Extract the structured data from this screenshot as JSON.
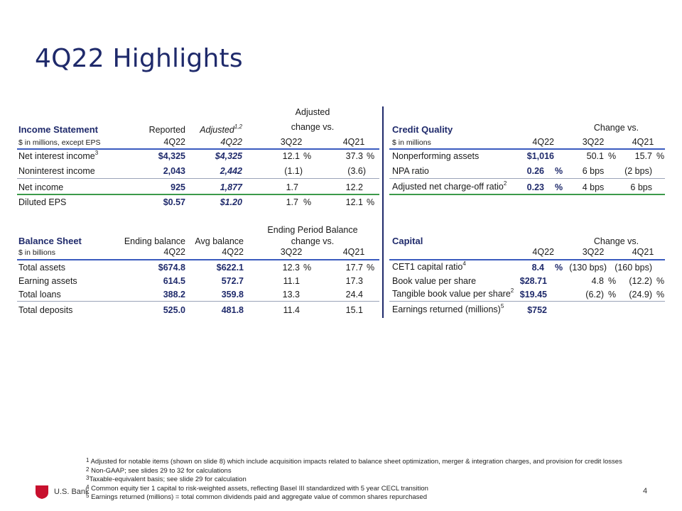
{
  "title": "4Q22 Highlights",
  "income": {
    "header": "Income Statement",
    "sub": "$ in millions, except EPS",
    "col_reported": "Reported",
    "col_reported_q": "4Q22",
    "col_adjusted": "Adjusted",
    "col_adjusted_sup": "1,2",
    "col_adjusted_q": "4Q22",
    "change_line1": "Adjusted",
    "change_line2": "change vs.",
    "col_3q": "3Q22",
    "col_4q": "4Q21",
    "rows": [
      {
        "label": "Net interest income",
        "sup": "3",
        "reported": "$4,325",
        "adjusted": "$4,325",
        "c3q": "12.1",
        "c3q_pct": "%",
        "c4q": "37.3",
        "c4q_pct": "%"
      },
      {
        "label": "Noninterest income",
        "sup": "",
        "reported": "2,043",
        "adjusted": "2,442",
        "c3q": "(1.1)",
        "c3q_pct": "",
        "c4q": "(3.6)",
        "c4q_pct": ""
      },
      {
        "label": "Net income",
        "sup": "",
        "reported": "925",
        "adjusted": "1,877",
        "c3q": "1.7",
        "c3q_pct": "",
        "c4q": "12.2",
        "c4q_pct": ""
      },
      {
        "label": "Diluted EPS",
        "sup": "",
        "reported": "$0.57",
        "adjusted": "$1.20",
        "c3q": "1.7",
        "c3q_pct": "%",
        "c4q": "12.1",
        "c4q_pct": "%"
      }
    ]
  },
  "credit": {
    "header": "Credit Quality",
    "sub": "$ in millions",
    "change": "Change vs.",
    "col_q": "4Q22",
    "col_3q": "3Q22",
    "col_4q": "4Q21",
    "rows": [
      {
        "label": "Nonperforming assets",
        "sup": "",
        "value": "$1,016",
        "vpct": "",
        "c3q": "50.1",
        "c3q_pct": "%",
        "c4q": "15.7",
        "c4q_pct": "%"
      },
      {
        "label": "NPA ratio",
        "sup": "",
        "value": "0.26",
        "vpct": "%",
        "c3q": "6 bps",
        "c3q_pct": "",
        "c4q": "(2 bps)",
        "c4q_pct": ""
      },
      {
        "label": "Adjusted net charge-off ratio",
        "sup": "2",
        "value": "0.23",
        "vpct": "%",
        "c3q": "4 bps",
        "c3q_pct": "",
        "c4q": "6 bps",
        "c4q_pct": ""
      }
    ]
  },
  "balance": {
    "header": "Balance Sheet",
    "sub": "$ in billions",
    "col_end": "Ending balance",
    "col_end_q": "4Q22",
    "col_avg": "Avg balance",
    "col_avg_q": "4Q22",
    "change_line1": "Ending Period Balance",
    "change_line2": "change vs.",
    "col_3q": "3Q22",
    "col_4q": "4Q21",
    "rows": [
      {
        "label": "Total assets",
        "ending": "$674.8",
        "avg": "$622.1",
        "c3q": "12.3",
        "c3q_pct": "%",
        "c4q": "17.7",
        "c4q_pct": "%"
      },
      {
        "label": "Earning assets",
        "ending": "614.5",
        "avg": "572.7",
        "c3q": "11.1",
        "c3q_pct": "",
        "c4q": "17.3",
        "c4q_pct": ""
      },
      {
        "label": "Total loans",
        "ending": "388.2",
        "avg": "359.8",
        "c3q": "13.3",
        "c3q_pct": "",
        "c4q": "24.4",
        "c4q_pct": ""
      },
      {
        "label": "Total deposits",
        "ending": "525.0",
        "avg": "481.8",
        "c3q": "11.4",
        "c3q_pct": "",
        "c4q": "15.1",
        "c4q_pct": ""
      }
    ]
  },
  "capital": {
    "header": "Capital",
    "change": "Change vs.",
    "col_q": "4Q22",
    "col_3q": "3Q22",
    "col_4q": "4Q21",
    "rows": [
      {
        "label": "CET1 capital ratio",
        "sup": "4",
        "value": "8.4",
        "vpct": "%",
        "c3q": "(130 bps)",
        "c3q_pct": "",
        "c4q": "(160 bps)",
        "c4q_pct": ""
      },
      {
        "label": "Book value per share",
        "sup": "",
        "value": "$28.71",
        "vpct": "",
        "c3q": "4.8",
        "c3q_pct": "%",
        "c4q": "(12.2)",
        "c4q_pct": "%"
      },
      {
        "label": "Tangible book value per share",
        "sup": "2",
        "value": "$19.45",
        "vpct": "",
        "c3q": "(6.2)",
        "c3q_pct": "%",
        "c4q": "(24.9)",
        "c4q_pct": "%"
      },
      {
        "label": "Earnings returned (millions)",
        "sup": "5",
        "value": "$752",
        "vpct": "",
        "c3q": "",
        "c3q_pct": "",
        "c4q": "",
        "c4q_pct": ""
      }
    ]
  },
  "footnotes": {
    "f1_num": "1",
    "f1": "Adjusted for notable items (shown on slide 8) which include acquisition impacts related to balance sheet optimization, merger & integration charges, and provision for credit losses",
    "f2_num": "2",
    "f2": "Non-GAAP; see slides 29 to 32 for calculations",
    "f3_num": "3",
    "f3": "Taxable-equivalent basis; see slide 29 for calculation",
    "f4_num": "4",
    "f4": "Common equity tier 1 capital to risk-weighted assets, reflecting Basel III standardized with 5 year CECL transition",
    "f5_num": "5",
    "f5": "Earnings returned (millions) = total common dividends paid and aggregate value of common shares repurchased"
  },
  "brand": "U.S. Bank",
  "page_number": "4",
  "colors": {
    "navy": "#1f2a6b",
    "blue_rule": "#3a5bbf",
    "green_rule": "#3c9a4a",
    "logo_red": "#c8102e"
  }
}
